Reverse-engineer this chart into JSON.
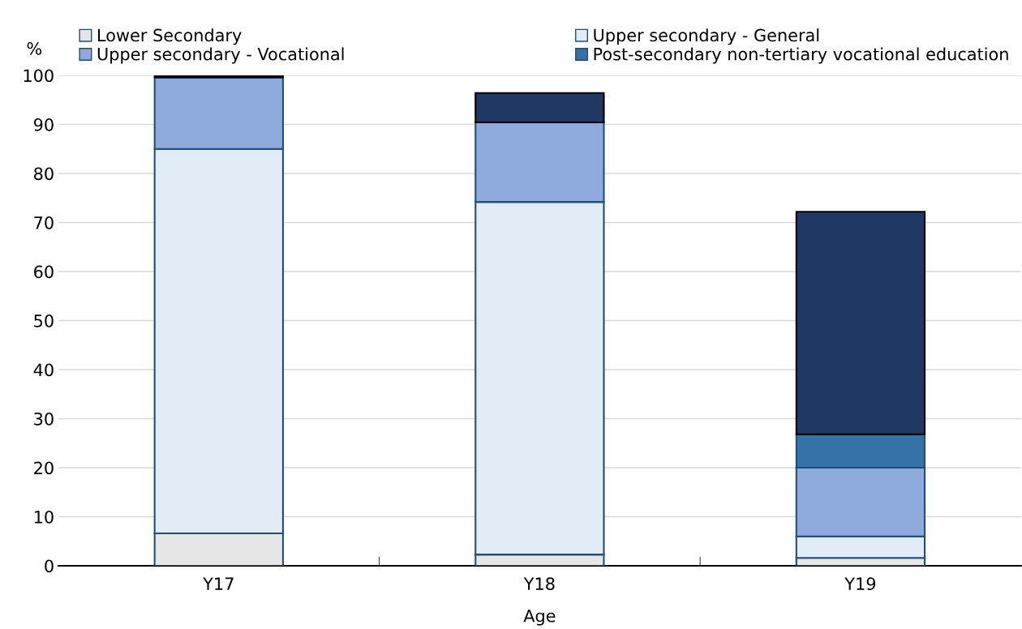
{
  "chart_data": {
    "type": "bar",
    "stacked": true,
    "xlabel": "Age",
    "ylabel": "%",
    "categories": [
      "Y17",
      "Y18",
      "Y19"
    ],
    "series": [
      {
        "name": "Lower Secondary",
        "color": "#e6e6e6",
        "values": [
          6.6,
          2.3,
          1.6
        ]
      },
      {
        "name": "Upper secondary - General",
        "color": "#e2ecf6",
        "values": [
          78.4,
          71.9,
          4.4
        ]
      },
      {
        "name": "Upper secondary - Vocational",
        "color": "#8faadc",
        "values": [
          14.6,
          16.2,
          14.0
        ]
      },
      {
        "name": "Post-secondary non-tertiary vocational education",
        "color": "#3572a8",
        "values": [
          null,
          null,
          6.8
        ]
      },
      {
        "color": "#203864",
        "values": [
          0.3,
          6.0,
          45.4
        ]
      }
    ],
    "ylim": [
      0,
      100
    ],
    "yticks": [
      0,
      10,
      20,
      30,
      40,
      50,
      60,
      70,
      80,
      90,
      100
    ],
    "grid": "y",
    "legend": "top"
  }
}
